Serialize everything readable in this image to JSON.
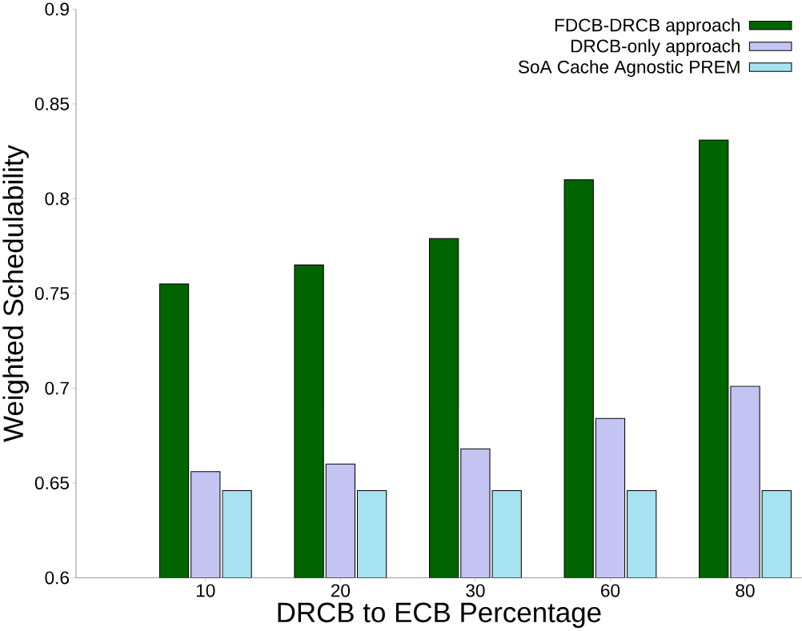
{
  "chart_data": {
    "type": "bar",
    "xlabel": "DRCB to ECB Percentage",
    "ylabel": "Weighted Schedulability",
    "categories": [
      "10",
      "20",
      "30",
      "60",
      "80"
    ],
    "series": [
      {
        "name": "FDCB-DRCB approach",
        "color": "#006400",
        "values": [
          0.755,
          0.765,
          0.779,
          0.81,
          0.831
        ]
      },
      {
        "name": "DRCB-only approach",
        "color": "#c4c4f2",
        "values": [
          0.656,
          0.66,
          0.668,
          0.684,
          0.701
        ]
      },
      {
        "name": "SoA Cache Agnostic PREM",
        "color": "#a6e2f0",
        "values": [
          0.646,
          0.646,
          0.646,
          0.646,
          0.646
        ]
      }
    ],
    "ylim": [
      0.6,
      0.9
    ],
    "yticks": [
      0.6,
      0.65,
      0.7,
      0.75,
      0.8,
      0.85,
      0.9
    ],
    "grid": false,
    "legend": "top right"
  }
}
